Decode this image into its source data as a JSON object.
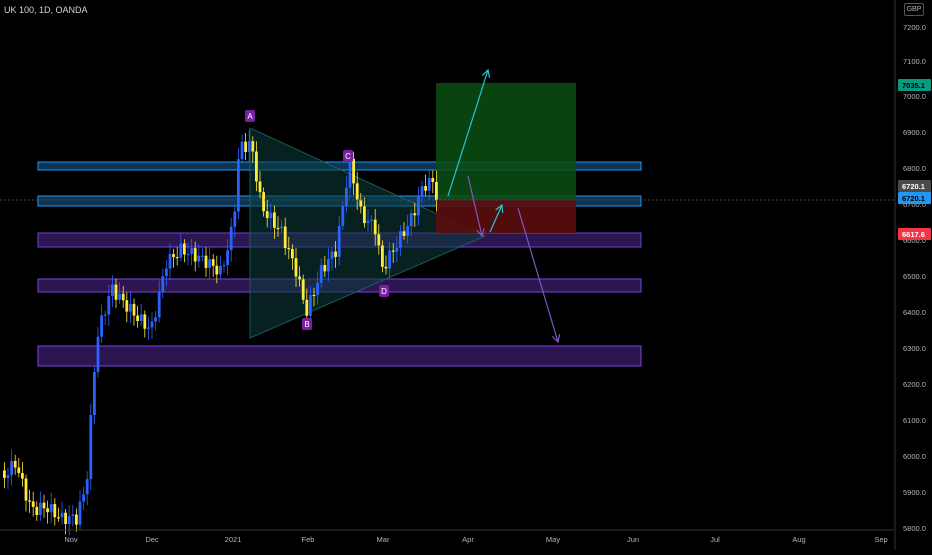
{
  "header": {
    "symbol_line": "UK 100, 1D, OANDA",
    "currency": "GBP"
  },
  "price_axis": {
    "ticks": [
      "7200.0",
      "7100.0",
      "7000.0",
      "6900.0",
      "6800.0",
      "6700.0",
      "6600.0",
      "6500.0",
      "6400.0",
      "6300.0",
      "6200.0",
      "6100.0",
      "6000.0",
      "5900.0",
      "5800.0"
    ],
    "tags": [
      {
        "label": "7035.1",
        "color": "#089981",
        "text_color": "#000000"
      },
      {
        "label": "6720.1",
        "color": "#4a4a4a",
        "text_color": "#ffffff"
      },
      {
        "label": "6720.1",
        "color": "#2196f3",
        "text_color": "#000000"
      },
      {
        "label": "6617.6",
        "color": "#f23645",
        "text_color": "#ffffff"
      }
    ]
  },
  "time_axis": {
    "ticks": [
      "Nov",
      "Dec",
      "2021",
      "Feb",
      "Mar",
      "Apr",
      "May",
      "Jun",
      "Jul",
      "Aug",
      "Sep"
    ]
  },
  "annotations": {
    "points": [
      "A",
      "B",
      "C",
      "D"
    ]
  },
  "colors": {
    "bull": "#2962ff",
    "bear": "#ffeb3b",
    "zone_blue": "#2196f3",
    "zone_purple": "#7b3fe4",
    "arrow_teal": "#26c6da",
    "arrow_purple": "#7e57c2"
  }
}
